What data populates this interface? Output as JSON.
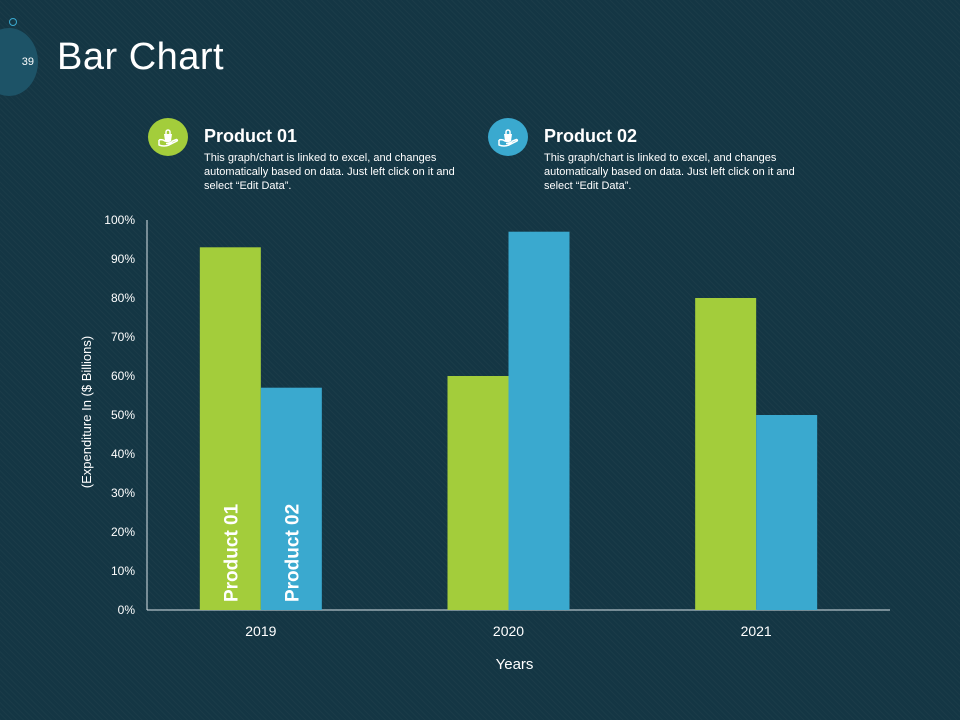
{
  "slide": {
    "number": "39",
    "title": "Bar Chart"
  },
  "legend": [
    {
      "name": "Product 01",
      "description": "This graph/chart is linked to excel, and changes automatically based on data. Just left click on it and select “Edit Data”.",
      "color": "#a3cd3b",
      "icon": "hand-holding-bag-icon"
    },
    {
      "name": "Product 02",
      "description": "This graph/chart is linked to excel, and changes automatically based on data. Just left click on it and select “Edit Data”.",
      "color": "#3aa9cf",
      "icon": "hand-holding-bag-icon"
    }
  ],
  "chart_data": {
    "type": "bar",
    "title": "",
    "categories": [
      "2019",
      "2020",
      "2021"
    ],
    "series": [
      {
        "name": "Product 01",
        "values": [
          93,
          60,
          80
        ],
        "color": "#a3cd3b"
      },
      {
        "name": "Product 02",
        "values": [
          57,
          97,
          50
        ],
        "color": "#3aa9cf"
      }
    ],
    "xlabel": "Years",
    "ylabel": "(Expenditure In ($ Billions)",
    "ylim": [
      0,
      100
    ],
    "yticks": [
      "0%",
      "10%",
      "20%",
      "30%",
      "40%",
      "50%",
      "60%",
      "70%",
      "80%",
      "90%",
      "100%"
    ],
    "bar_labels": [
      "Product 01",
      "Product 02"
    ]
  }
}
